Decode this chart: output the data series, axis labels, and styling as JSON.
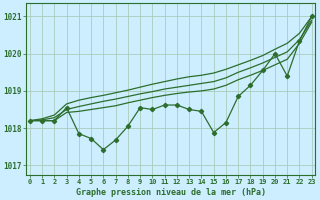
{
  "x": [
    0,
    1,
    2,
    3,
    4,
    5,
    6,
    7,
    8,
    9,
    10,
    11,
    12,
    13,
    14,
    15,
    16,
    17,
    18,
    19,
    20,
    21,
    22,
    23
  ],
  "line_jagged": [
    1018.2,
    1018.2,
    1018.2,
    1018.55,
    1017.85,
    1017.72,
    1017.42,
    1017.68,
    1018.05,
    1018.55,
    1018.5,
    1018.62,
    1018.62,
    1018.5,
    1018.45,
    1017.88,
    1018.15,
    1018.85,
    1019.15,
    1019.55,
    1020.0,
    1019.4,
    1020.35,
    1021.0
  ],
  "line_upper_bound": [
    1018.2,
    1018.25,
    1018.35,
    1018.65,
    1018.75,
    1018.82,
    1018.88,
    1018.95,
    1019.02,
    1019.1,
    1019.18,
    1019.25,
    1019.32,
    1019.38,
    1019.42,
    1019.48,
    1019.58,
    1019.7,
    1019.82,
    1019.95,
    1020.12,
    1020.28,
    1020.55,
    1021.0
  ],
  "line_mid_high": [
    1018.2,
    1018.22,
    1018.28,
    1018.5,
    1018.58,
    1018.65,
    1018.72,
    1018.78,
    1018.85,
    1018.92,
    1018.98,
    1019.05,
    1019.1,
    1019.15,
    1019.2,
    1019.25,
    1019.35,
    1019.5,
    1019.62,
    1019.75,
    1019.9,
    1020.05,
    1020.38,
    1020.9
  ],
  "line_mid_low": [
    1018.2,
    1018.2,
    1018.2,
    1018.42,
    1018.45,
    1018.5,
    1018.55,
    1018.6,
    1018.68,
    1018.75,
    1018.82,
    1018.88,
    1018.93,
    1018.97,
    1019.0,
    1019.05,
    1019.15,
    1019.3,
    1019.42,
    1019.55,
    1019.7,
    1019.85,
    1020.28,
    1020.85
  ],
  "bg_color": "#cceeff",
  "line_color": "#2d6e2d",
  "grid_color": "#aaccbb",
  "xlabel": "Graphe pression niveau de la mer (hPa)",
  "yticks": [
    1017,
    1018,
    1019,
    1020,
    1021
  ],
  "xticks": [
    0,
    1,
    2,
    3,
    4,
    5,
    6,
    7,
    8,
    9,
    10,
    11,
    12,
    13,
    14,
    15,
    16,
    17,
    18,
    19,
    20,
    21,
    22,
    23
  ],
  "ylim": [
    1016.75,
    1021.35
  ],
  "xlim": [
    -0.3,
    23.3
  ],
  "marker": "D",
  "marker_size": 2.2,
  "lw": 0.9
}
